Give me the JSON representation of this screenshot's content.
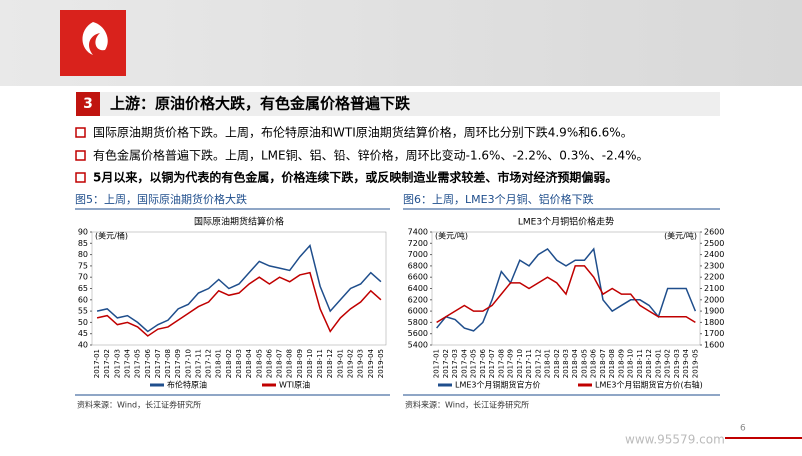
{
  "header": {
    "number": "3",
    "title": "上游：原油价格大跌，有色金属价格普遍下跌"
  },
  "bullets": [
    "国际原油期货价格下跌。上周，布伦特原油和WTI原油期货结算价格，周环比分别下跌4.9%和6.6%。",
    "有色金属价格普遍下跌。上周，LME铜、铝、铅、锌价格，周环比变动-1.6%、-2.2%、0.3%、-2.4%。",
    "5月以来，以铜为代表的有色金属，价格连续下跌，或反映制造业需求较差、市场对经济预期偏弱。"
  ],
  "chart_data": [
    {
      "type": "line",
      "caption": "图5：上周，国际原油期货价格大跌",
      "title": "国际原油期货结算价格",
      "y_label": "(美元/桶)",
      "categories": [
        "2017-01",
        "2017-02",
        "2017-03",
        "2017-04",
        "2017-05",
        "2017-06",
        "2017-07",
        "2017-08",
        "2017-09",
        "2017-10",
        "2017-11",
        "2017-12",
        "2018-01",
        "2018-02",
        "2018-03",
        "2018-04",
        "2018-05",
        "2018-06",
        "2018-07",
        "2018-08",
        "2018-09",
        "2018-10",
        "2018-11",
        "2018-12",
        "2019-01",
        "2019-02",
        "2019-03",
        "2019-04",
        "2019-05"
      ],
      "ylim": [
        40,
        90
      ],
      "yticks": [
        40,
        45,
        50,
        55,
        60,
        65,
        70,
        75,
        80,
        85,
        90
      ],
      "series": [
        {
          "name": "布伦特原油",
          "color": "#1f4e8c",
          "values": [
            55,
            56,
            52,
            53,
            50,
            46,
            49,
            51,
            56,
            58,
            63,
            65,
            69,
            65,
            67,
            72,
            77,
            75,
            74,
            73,
            79,
            84,
            66,
            55,
            60,
            65,
            67,
            72,
            68
          ]
        },
        {
          "name": "WTI原油",
          "color": "#c00000",
          "values": [
            52,
            53,
            49,
            50,
            48,
            44,
            47,
            48,
            51,
            54,
            57,
            59,
            64,
            62,
            63,
            67,
            70,
            67,
            70,
            68,
            71,
            72,
            56,
            46,
            52,
            56,
            59,
            64,
            60
          ]
        }
      ],
      "source": "资料来源：Wind，长江证券研究所"
    },
    {
      "type": "line",
      "caption": "图6：上周，LME3个月铜、铝价格下跌",
      "title": "LME3个月铜铝价格走势",
      "y_label": "(美元/吨)",
      "y2_label": "(美元/吨)",
      "categories": [
        "2017-01",
        "2017-02",
        "2017-03",
        "2017-04",
        "2017-05",
        "2017-06",
        "2017-07",
        "2017-08",
        "2017-09",
        "2017-10",
        "2017-11",
        "2017-12",
        "2018-01",
        "2018-02",
        "2018-03",
        "2018-04",
        "2018-05",
        "2018-06",
        "2018-07",
        "2018-08",
        "2018-09",
        "2018-10",
        "2018-11",
        "2018-12",
        "2019-01",
        "2019-02",
        "2019-03",
        "2019-04",
        "2019-05"
      ],
      "ylim": [
        5400,
        7400
      ],
      "yticks": [
        5400,
        5600,
        5800,
        6000,
        6200,
        6400,
        6600,
        6800,
        7000,
        7200,
        7400
      ],
      "y2lim": [
        1600,
        2600
      ],
      "y2ticks": [
        1600,
        1700,
        1800,
        1900,
        2000,
        2100,
        2200,
        2300,
        2400,
        2500,
        2600
      ],
      "series": [
        {
          "name": "LME3个月铜期货官方价",
          "color": "#1f4e8c",
          "values": [
            5700,
            5900,
            5850,
            5700,
            5650,
            5800,
            6200,
            6700,
            6500,
            6900,
            6800,
            7000,
            7100,
            6900,
            6800,
            6900,
            6900,
            7100,
            6200,
            6000,
            6100,
            6200,
            6200,
            6100,
            5900,
            6400,
            6400,
            6400,
            6000
          ]
        },
        {
          "name": "LME3个月铝期货官方价(右轴)",
          "color": "#c00000",
          "axis": "y2",
          "values": [
            1800,
            1850,
            1900,
            1950,
            1900,
            1900,
            1950,
            2050,
            2150,
            2150,
            2100,
            2150,
            2200,
            2150,
            2050,
            2300,
            2300,
            2200,
            2050,
            2100,
            2050,
            2050,
            1950,
            1900,
            1850,
            1850,
            1850,
            1850,
            1800
          ]
        }
      ],
      "source": "资料来源：Wind，长江证券研究所"
    }
  ],
  "page_number": "6",
  "watermark": "www.95579.com"
}
